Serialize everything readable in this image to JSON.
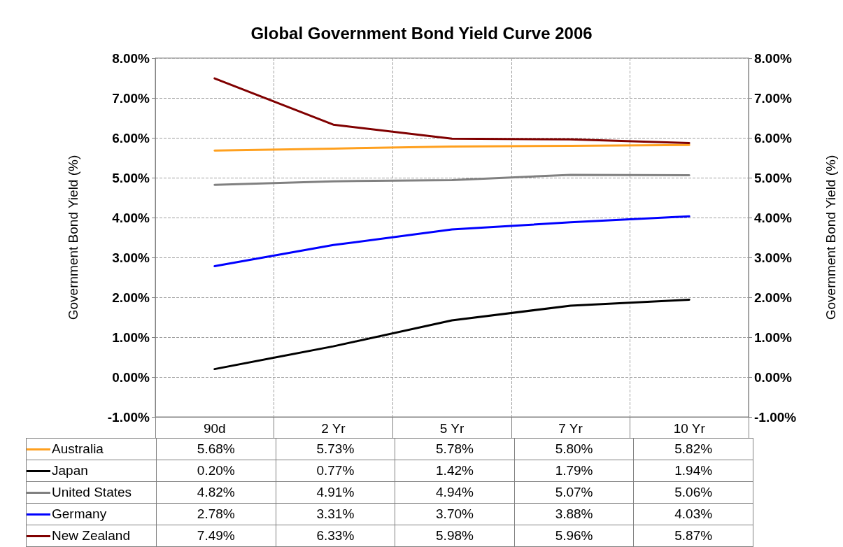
{
  "chart_data": {
    "type": "line",
    "title": "Global Government Bond Yield Curve 2006",
    "ylabel": "Government Bond Yield (%)",
    "y2label": "Government Bond Yield (%)",
    "categories": [
      "90d",
      "2 Yr",
      "5 Yr",
      "7 Yr",
      "10 Yr"
    ],
    "series": [
      {
        "name": "Australia",
        "color": "#ffa01e",
        "values": [
          5.68,
          5.73,
          5.78,
          5.8,
          5.82
        ],
        "value_labels": [
          "5.68%",
          "5.73%",
          "5.78%",
          "5.80%",
          "5.82%"
        ]
      },
      {
        "name": "Japan",
        "color": "#000000",
        "values": [
          0.2,
          0.77,
          1.42,
          1.79,
          1.94
        ],
        "value_labels": [
          "0.20%",
          "0.77%",
          "1.42%",
          "1.79%",
          "1.94%"
        ]
      },
      {
        "name": "United States",
        "color": "#808080",
        "values": [
          4.82,
          4.91,
          4.94,
          5.07,
          5.06
        ],
        "value_labels": [
          "4.82%",
          "4.91%",
          "4.94%",
          "5.07%",
          "5.06%"
        ]
      },
      {
        "name": "Germany",
        "color": "#0000ff",
        "values": [
          2.78,
          3.31,
          3.7,
          3.88,
          4.03
        ],
        "value_labels": [
          "2.78%",
          "3.31%",
          "3.70%",
          "3.88%",
          "4.03%"
        ]
      },
      {
        "name": "New Zealand",
        "color": "#800000",
        "values": [
          7.49,
          6.33,
          5.98,
          5.96,
          5.87
        ],
        "value_labels": [
          "7.49%",
          "6.33%",
          "5.98%",
          "5.96%",
          "5.87%"
        ]
      }
    ],
    "ylim": [
      -1,
      8
    ],
    "yticks": [
      {
        "value": -1,
        "label": "-1.00%"
      },
      {
        "value": 0,
        "label": "0.00%"
      },
      {
        "value": 1,
        "label": "1.00%"
      },
      {
        "value": 2,
        "label": "2.00%"
      },
      {
        "value": 3,
        "label": "3.00%"
      },
      {
        "value": 4,
        "label": "4.00%"
      },
      {
        "value": 5,
        "label": "5.00%"
      },
      {
        "value": 6,
        "label": "6.00%"
      },
      {
        "value": 7,
        "label": "7.00%"
      },
      {
        "value": 8,
        "label": "8.00%"
      }
    ],
    "y2lim": [
      -1,
      8
    ],
    "y2ticks": [
      {
        "value": -1,
        "label": "-1.00%"
      },
      {
        "value": 0,
        "label": "0.00%"
      },
      {
        "value": 1,
        "label": "1.00%"
      },
      {
        "value": 2,
        "label": "2.00%"
      },
      {
        "value": 3,
        "label": "3.00%"
      },
      {
        "value": 4,
        "label": "4.00%"
      },
      {
        "value": 5,
        "label": "5.00%"
      },
      {
        "value": 6,
        "label": "6.00%"
      },
      {
        "value": 7,
        "label": "7.00%"
      },
      {
        "value": 8,
        "label": "8.00%"
      }
    ],
    "grid": true,
    "legend": "bottom",
    "marker": "none",
    "line_style": "solid"
  }
}
